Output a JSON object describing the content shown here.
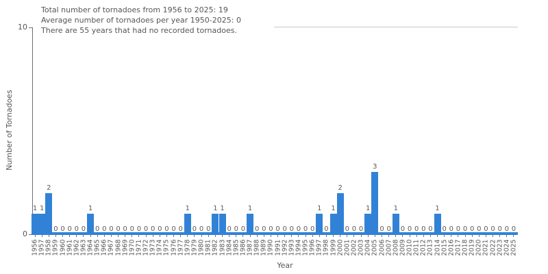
{
  "chart_data": {
    "type": "bar",
    "annotations": [
      "Total number of tornadoes from 1956 to 2025: 19",
      "Average number of tornadoes per year 1950-2025: 0",
      "There are 55 years that had no recorded tornadoes."
    ],
    "xlabel": "Year",
    "ylabel": "Number of Tornadoes",
    "ylim": [
      0,
      10
    ],
    "yticks": [
      0,
      10
    ],
    "grid": "off",
    "legend": "none",
    "bar_color": "#3182d6",
    "axis_color": "#6e6e6e",
    "text_color": "#555555",
    "tick_label_color": "#595959",
    "bar_value_labels_shown": true,
    "categories": [
      1956,
      1957,
      1958,
      1959,
      1960,
      1961,
      1962,
      1963,
      1964,
      1965,
      1966,
      1967,
      1968,
      1969,
      1970,
      1971,
      1972,
      1973,
      1974,
      1975,
      1976,
      1977,
      1978,
      1979,
      1980,
      1981,
      1982,
      1983,
      1984,
      1985,
      1986,
      1987,
      1988,
      1989,
      1990,
      1991,
      1992,
      1993,
      1994,
      1995,
      1996,
      1997,
      1998,
      1999,
      2000,
      2001,
      2002,
      2003,
      2004,
      2005,
      2006,
      2007,
      2008,
      2009,
      2010,
      2011,
      2012,
      2013,
      2014,
      2015,
      2016,
      2017,
      2018,
      2019,
      2020,
      2021,
      2022,
      2023,
      2024,
      2025
    ],
    "values": [
      1,
      1,
      2,
      0,
      0,
      0,
      0,
      0,
      1,
      0,
      0,
      0,
      0,
      0,
      0,
      0,
      0,
      0,
      0,
      0,
      0,
      0,
      1,
      0,
      0,
      0,
      1,
      1,
      0,
      0,
      0,
      1,
      0,
      0,
      0,
      0,
      0,
      0,
      0,
      0,
      0,
      1,
      0,
      1,
      2,
      0,
      0,
      0,
      1,
      3,
      0,
      0,
      1,
      0,
      0,
      0,
      0,
      0,
      1,
      0,
      0,
      0,
      0,
      0,
      0,
      0,
      0,
      0,
      0,
      0
    ]
  }
}
